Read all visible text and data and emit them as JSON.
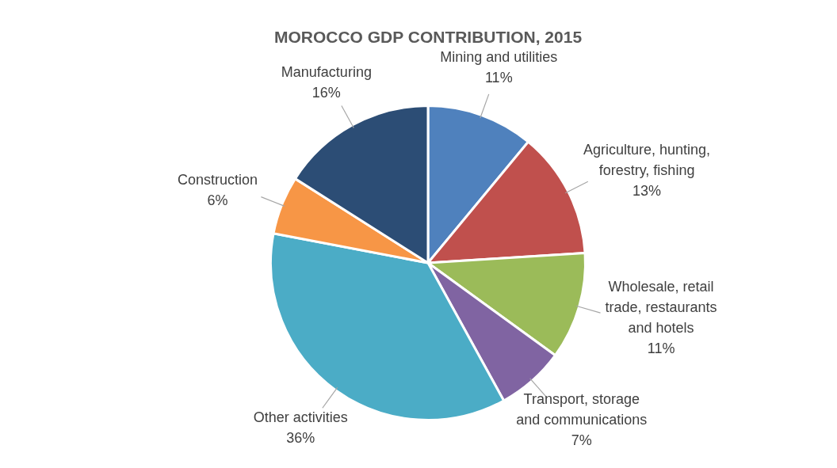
{
  "chart_data": {
    "type": "pie",
    "title": "MOROCCO GDP CONTRIBUTION, 2015",
    "categories": [
      "Mining and utilities",
      "Agriculture, hunting, forestry, fishing",
      "Wholesale, retail trade, restaurants and hotels",
      "Transport, storage and communications",
      "Other activities",
      "Construction",
      "Manufacturing"
    ],
    "values": [
      11,
      13,
      11,
      7,
      36,
      6,
      16
    ],
    "colors": [
      "#4f81bd",
      "#c0504d",
      "#9bbb59",
      "#8064a2",
      "#4bacc6",
      "#f79646",
      "#2c4d75"
    ],
    "value_labels": [
      "11%",
      "13%",
      "11%",
      "7%",
      "36%",
      "6%",
      "16%"
    ],
    "legend": false
  }
}
